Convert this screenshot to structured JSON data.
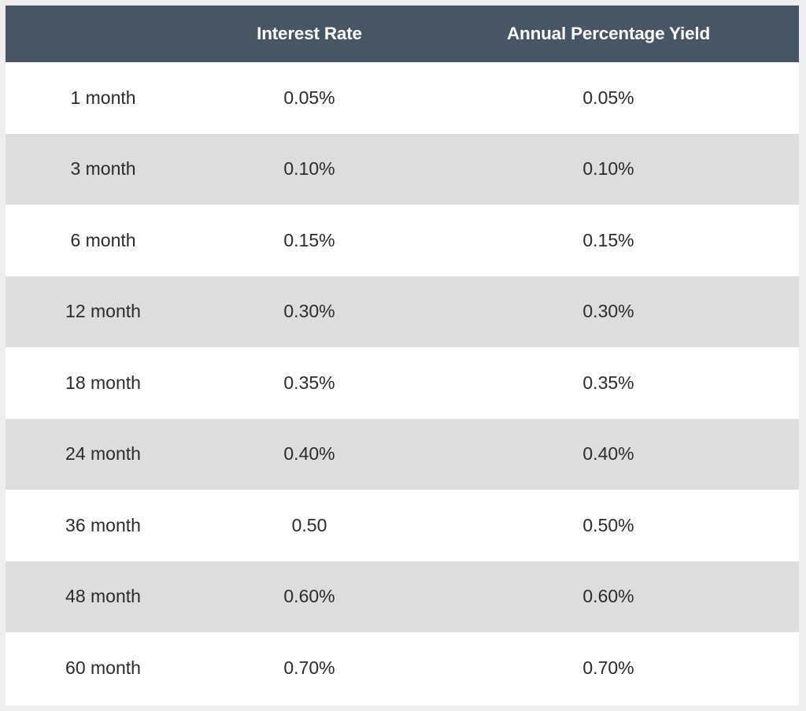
{
  "table": {
    "columns": [
      "",
      "Interest Rate",
      "Annual Percentage Yield"
    ],
    "rows": [
      {
        "term": "1 month",
        "rate": "0.05%",
        "apy": "0.05%"
      },
      {
        "term": "3 month",
        "rate": "0.10%",
        "apy": "0.10%"
      },
      {
        "term": "6 month",
        "rate": "0.15%",
        "apy": "0.15%"
      },
      {
        "term": "12 month",
        "rate": "0.30%",
        "apy": "0.30%"
      },
      {
        "term": "18 month",
        "rate": "0.35%",
        "apy": "0.35%"
      },
      {
        "term": "24 month",
        "rate": "0.40%",
        "apy": "0.40%"
      },
      {
        "term": "36 month",
        "rate": "0.50",
        "apy": "0.50%"
      },
      {
        "term": "48 month",
        "rate": "0.60%",
        "apy": "0.60%"
      },
      {
        "term": "60 month",
        "rate": "0.70%",
        "apy": "0.70%"
      }
    ]
  },
  "colors": {
    "header_bg": "#475565",
    "header_text": "#ffffff",
    "row_alt_bg": "#dddddd",
    "row_bg": "#ffffff",
    "body_text": "#2b2b2b"
  }
}
